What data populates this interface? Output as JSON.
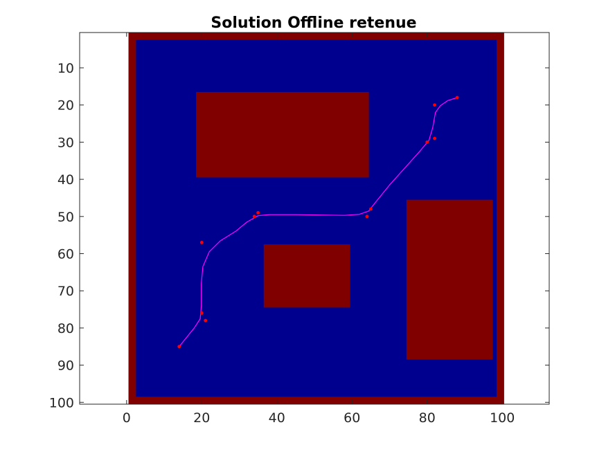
{
  "chart_data": {
    "type": "heatmap",
    "title": "Solution Offline retenue",
    "xlim": [
      -12.5,
      112.5
    ],
    "ylim": [
      100.5,
      0.5
    ],
    "y_axis_direction": "reversed",
    "x_ticks": [
      0,
      20,
      40,
      60,
      80,
      100
    ],
    "y_ticks": [
      10,
      20,
      30,
      40,
      50,
      60,
      70,
      80,
      90,
      100
    ],
    "grid": false,
    "map": {
      "rows": 100,
      "cols": 100,
      "free_color": "#00008f",
      "obstacle_color": "#800000",
      "border_thickness_cells": 2,
      "obstacles": [
        {
          "name": "rect-top",
          "x_range": [
            19,
            64
          ],
          "y_range": [
            17,
            39
          ]
        },
        {
          "name": "rect-center",
          "x_range": [
            37,
            59
          ],
          "y_range": [
            58,
            74
          ]
        },
        {
          "name": "rect-right",
          "x_range": [
            75,
            97
          ],
          "y_range": [
            46,
            88
          ]
        }
      ]
    },
    "waypoints": {
      "color": "#ff0000",
      "points": [
        [
          14,
          85
        ],
        [
          20,
          76
        ],
        [
          21,
          78
        ],
        [
          20,
          57
        ],
        [
          34,
          50
        ],
        [
          35,
          49
        ],
        [
          64,
          50
        ],
        [
          65,
          48
        ],
        [
          80,
          30
        ],
        [
          82,
          29
        ],
        [
          82,
          20
        ],
        [
          88,
          18
        ]
      ]
    },
    "path": {
      "color": "#ff00ff",
      "points": [
        [
          14,
          85
        ],
        [
          16,
          82.5
        ],
        [
          18,
          80
        ],
        [
          19.6,
          77.5
        ],
        [
          19.9,
          74
        ],
        [
          19.9,
          68
        ],
        [
          20.3,
          63.5
        ],
        [
          22,
          59.5
        ],
        [
          25,
          56.5
        ],
        [
          29,
          54
        ],
        [
          32,
          51.5
        ],
        [
          35,
          49.8
        ],
        [
          38,
          49.5
        ],
        [
          45,
          49.5
        ],
        [
          52,
          49.6
        ],
        [
          58,
          49.7
        ],
        [
          62,
          49.4
        ],
        [
          64.5,
          48.5
        ],
        [
          66,
          46.5
        ],
        [
          70,
          41.5
        ],
        [
          74,
          37
        ],
        [
          78,
          32.5
        ],
        [
          80.5,
          29.5
        ],
        [
          81.5,
          26
        ],
        [
          82.2,
          22
        ],
        [
          83.5,
          20.2
        ],
        [
          85.5,
          18.8
        ],
        [
          88,
          18
        ]
      ]
    }
  }
}
